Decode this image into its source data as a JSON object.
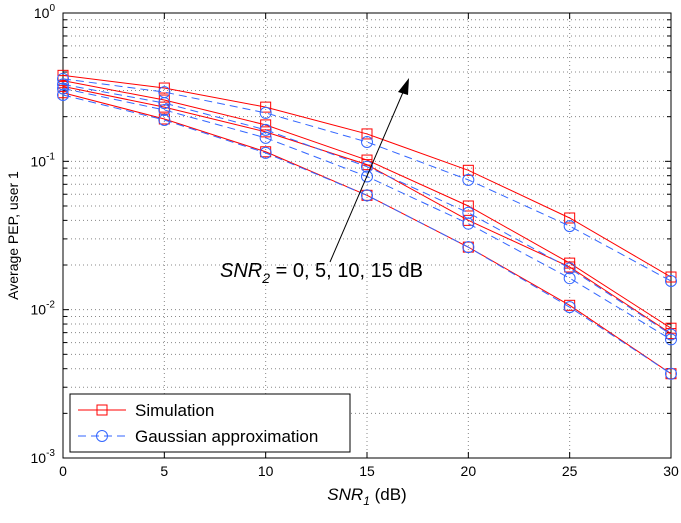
{
  "chart_data": {
    "type": "line",
    "title": "",
    "xlabel": {
      "main": "SNR",
      "sub": "1",
      "unit": " (dB)"
    },
    "ylabel": "Average PEP, user 1",
    "xlim": [
      0,
      30
    ],
    "ylim": [
      0.001,
      1
    ],
    "yscale": "log",
    "grid": true,
    "legend_position": "bottom-left",
    "x": [
      0,
      5,
      10,
      15,
      20,
      25,
      30
    ],
    "x_ticks": [
      "0",
      "5",
      "10",
      "15",
      "20",
      "25",
      "30"
    ],
    "y_ticks": [
      {
        "base": "10",
        "exp": "0"
      },
      {
        "base": "10",
        "exp": "-1"
      },
      {
        "base": "10",
        "exp": "-2"
      },
      {
        "base": "10",
        "exp": "-3"
      }
    ],
    "annotation": {
      "main": "SNR",
      "sub": "2",
      "rest": " = 0, 5, 10, 15 dB"
    },
    "legend": [
      {
        "name": "Simulation",
        "color": "#ff0000",
        "marker": "square",
        "style": "solid"
      },
      {
        "name": "Gaussian approximation",
        "color": "#3366ff",
        "marker": "circle",
        "style": "dashed"
      }
    ],
    "series": [
      {
        "group": "Simulation",
        "snr2": 15,
        "values": [
          0.38,
          0.312,
          0.232,
          0.153,
          0.087,
          0.0415,
          0.0166
        ]
      },
      {
        "group": "Simulation",
        "snr2": 10,
        "values": [
          0.35,
          0.259,
          0.176,
          0.102,
          0.05,
          0.0206,
          0.0075
        ]
      },
      {
        "group": "Simulation",
        "snr2": 5,
        "values": [
          0.32,
          0.232,
          0.158,
          0.095,
          0.04,
          0.0194,
          0.0069
        ]
      },
      {
        "group": "Simulation",
        "snr2": 0,
        "values": [
          0.29,
          0.193,
          0.116,
          0.059,
          0.0264,
          0.0107,
          0.0037
        ]
      },
      {
        "group": "Gaussian approximation",
        "snr2": 15,
        "values": [
          0.36,
          0.293,
          0.212,
          0.135,
          0.075,
          0.0366,
          0.0156
        ]
      },
      {
        "group": "Gaussian approximation",
        "snr2": 10,
        "values": [
          0.33,
          0.247,
          0.163,
          0.092,
          0.045,
          0.019,
          0.0068
        ]
      },
      {
        "group": "Gaussian approximation",
        "snr2": 5,
        "values": [
          0.31,
          0.222,
          0.144,
          0.079,
          0.038,
          0.0163,
          0.0063
        ]
      },
      {
        "group": "Gaussian approximation",
        "snr2": 0,
        "values": [
          0.28,
          0.19,
          0.114,
          0.059,
          0.0264,
          0.0104,
          0.0037
        ]
      }
    ]
  }
}
